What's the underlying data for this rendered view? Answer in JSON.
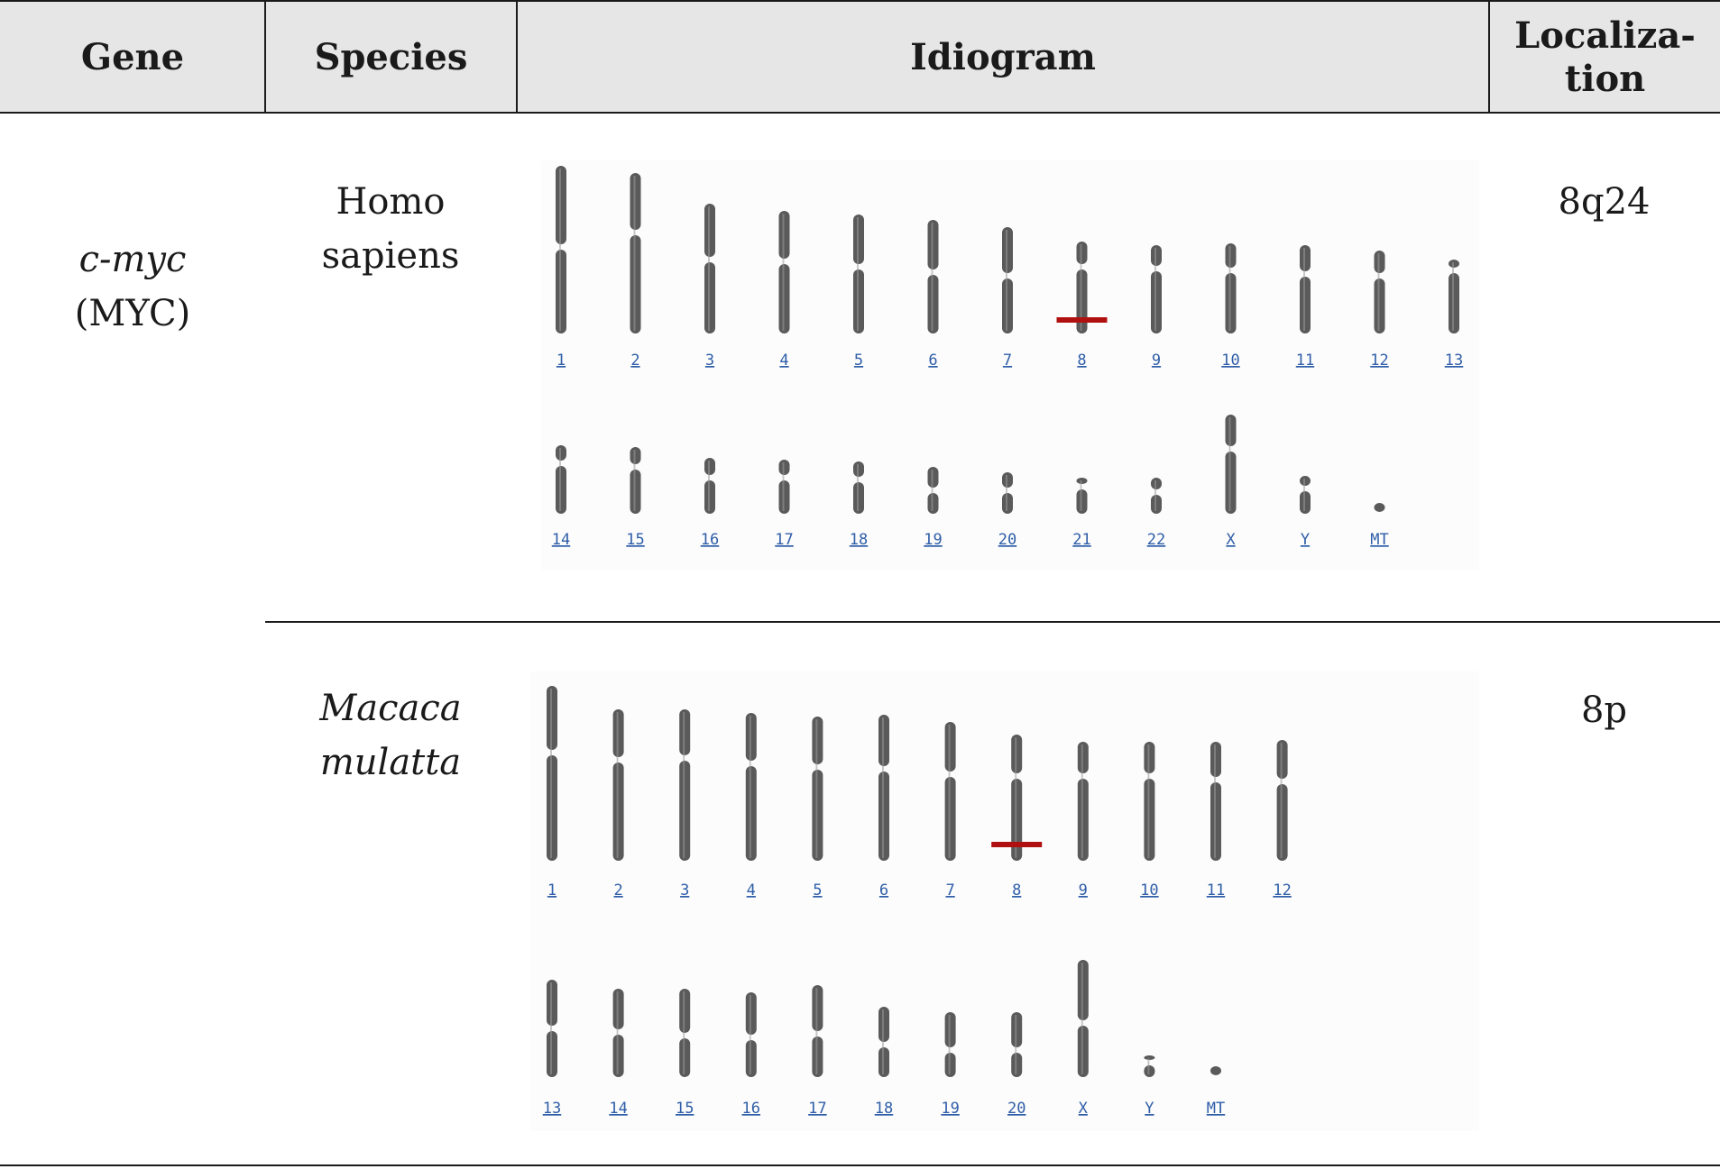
{
  "header": {
    "gene": "Gene",
    "species": "Species",
    "idiogram": "Idiogram",
    "localization_line1": "Localiza-",
    "localization_line2": "tion"
  },
  "gene": {
    "symbol": "c-myc",
    "alias": "(MYC)"
  },
  "rows": [
    {
      "species_line1": "Homo",
      "species_line2": "sapiens",
      "species_italic": false,
      "localization": "8q24",
      "highlight_chromosome": "8",
      "highlight_color": "#b01010",
      "chromosome_rows": [
        [
          "1",
          "2",
          "3",
          "4",
          "5",
          "6",
          "7",
          "8",
          "9",
          "10",
          "11",
          "12",
          "13"
        ],
        [
          "14",
          "15",
          "16",
          "17",
          "18",
          "19",
          "20",
          "21",
          "22",
          "X",
          "Y",
          "MT"
        ]
      ]
    },
    {
      "species_line1": "Macaca",
      "species_line2": "mulatta",
      "species_italic": true,
      "localization": "8p",
      "highlight_chromosome": "8",
      "highlight_color": "#b01010",
      "chromosome_rows": [
        [
          "1",
          "2",
          "3",
          "4",
          "5",
          "6",
          "7",
          "8",
          "9",
          "10",
          "11",
          "12"
        ],
        [
          "13",
          "14",
          "15",
          "16",
          "17",
          "18",
          "19",
          "20",
          "X",
          "Y",
          "MT"
        ]
      ]
    }
  ],
  "colors": {
    "chromosome": "#5a5a5a",
    "label": "#2f5ea8",
    "header_bg": "#e6e6e6"
  }
}
